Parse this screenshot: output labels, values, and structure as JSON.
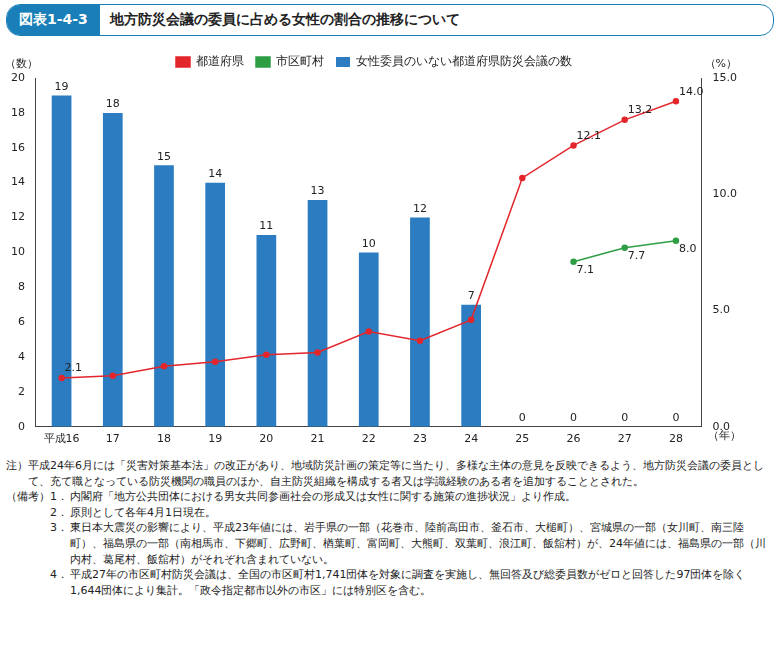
{
  "chart_data": {
    "type": "bar",
    "figure_number": "図表1-4-3",
    "title": "地方防災会議の委員に占める女性の割合の推移について",
    "categories": [
      "平成16",
      "17",
      "18",
      "19",
      "20",
      "21",
      "22",
      "23",
      "24",
      "25",
      "26",
      "27",
      "28"
    ],
    "x_label": "（年）",
    "y_label": "（数）",
    "y2_label": "（%）",
    "ylim": [
      0,
      20
    ],
    "yticks": [
      0,
      2,
      4,
      6,
      8,
      10,
      12,
      14,
      16,
      18,
      20
    ],
    "y2lim": [
      0,
      15
    ],
    "y2ticks": [
      {
        "value": 0,
        "label": "0.0"
      },
      {
        "value": 5,
        "label": "5.0"
      },
      {
        "value": 10,
        "label": "10.0"
      },
      {
        "value": 15,
        "label": "15.0"
      }
    ],
    "grid": false,
    "legend": "top",
    "series": [
      {
        "name": "女性委員のいない都道府県防災会議の数",
        "type": "bar",
        "color": "#2b7cc0",
        "values": [
          19,
          18,
          15,
          14,
          11,
          13,
          10,
          12,
          7,
          0,
          0,
          0,
          0
        ],
        "data_labels": true
      },
      {
        "name": "都道府県",
        "type": "line",
        "axis": "y2",
        "color": "#e3262b",
        "marker": "circle",
        "values": [
          2.1,
          2.2,
          2.6,
          2.8,
          3.1,
          3.2,
          4.1,
          3.7,
          4.6,
          10.7,
          12.1,
          13.2,
          14.0
        ],
        "value_labels": [
          "2.1",
          null,
          null,
          null,
          null,
          null,
          null,
          null,
          null,
          null,
          "12.1",
          "13.2",
          "14.0"
        ],
        "data_labels": true
      },
      {
        "name": "市区町村",
        "type": "line",
        "axis": "y2",
        "color": "#2e9e45",
        "marker": "circle",
        "values": [
          null,
          null,
          null,
          null,
          null,
          null,
          null,
          null,
          null,
          null,
          7.1,
          7.7,
          8.0
        ],
        "value_labels": [
          null,
          null,
          null,
          null,
          null,
          null,
          null,
          null,
          null,
          null,
          "7.1",
          "7.7",
          "8.0"
        ],
        "data_labels": true
      }
    ],
    "annotations": {
      "notes": [
        {
          "label": "注）",
          "text": "平成24年6月には「災害対策基本法」の改正があり、地域防災計画の策定等に当たり、多様な主体の意見を反映できるよう、地方防災会議の委員として、充て職となっている防災機関の職員のほか、自主防災組織を構成する者又は学識経験のある者を追加することとされた。"
        }
      ],
      "remarks_label": "（備考）",
      "remarks": [
        {
          "label": "1．",
          "text": "内閣府「地方公共団体における男女共同参画社会の形成又は女性に関する施策の進捗状況」より作成。"
        },
        {
          "label": "2．",
          "text": "原則として各年4月1日現在。"
        },
        {
          "label": "3．",
          "text": "東日本大震災の影響により、平成23年値には、岩手県の一部（花巻市、陸前高田市、釜石市、大槌町）、宮城県の一部（女川町、南三陸町）、福島県の一部（南相馬市、下郷町、広野町、楢葉町、富岡町、大熊町、双葉町、浪江町、飯舘村）が、24年値には、福島県の一部（川内村、葛尾村、飯舘村）がそれぞれ含まれていない。"
        },
        {
          "label": "4．",
          "text": "平成27年の市区町村防災会議は、全国の市区町村1,741団体を対象に調査を実施し、無回答及び総委員数がゼロと回答した97団体を除く1,644団体により集計。「政令指定都市以外の市区」には特別区を含む。"
        }
      ]
    }
  }
}
